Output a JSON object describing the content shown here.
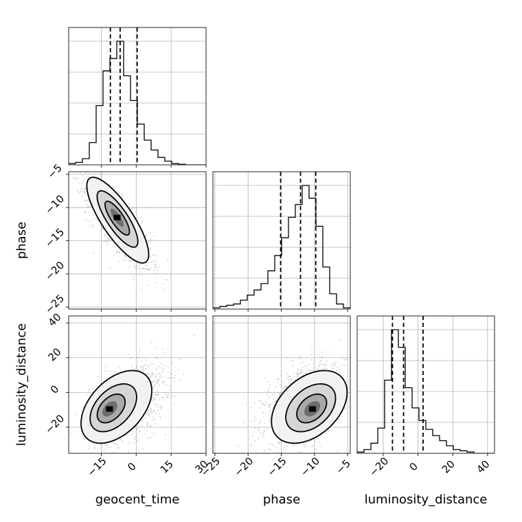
{
  "chart_data": {
    "type": "scatter",
    "title": "",
    "parameters": [
      "geocent_time",
      "phase",
      "luminosity_distance"
    ],
    "axis_labels": {
      "geocent_time": "geocent_time",
      "phase": "phase",
      "luminosity_distance": "luminosity_distance"
    },
    "ranges": {
      "geocent_time": [
        -29,
        30
      ],
      "phase": [
        -25.3,
        -4.6
      ],
      "luminosity_distance": [
        -35,
        44
      ]
    },
    "ticks": {
      "geocent_time": {
        "values": [
          -15,
          0,
          15,
          30
        ],
        "labels": [
          "−15",
          "0",
          "15",
          "30"
        ]
      },
      "phase": {
        "values": [
          -25,
          -20,
          -15,
          -10,
          -5
        ],
        "labels": [
          "−25",
          "−20",
          "−15",
          "−10",
          "−5"
        ]
      },
      "luminosity_distance": {
        "values": [
          -20,
          0,
          20,
          40
        ],
        "labels": [
          "−20",
          "0",
          "20",
          "40"
        ]
      }
    },
    "grid": true,
    "quantiles": {
      "geocent_time": [
        -11.1,
        -6.9,
        0.4
      ],
      "phase": [
        -15.1,
        -12.1,
        -9.8
      ],
      "luminosity_distance": [
        -14.7,
        -8.3,
        2.9
      ]
    },
    "marginals": {
      "geocent_time": {
        "bin_edges": [
          -29,
          -26.05,
          -23.1,
          -20.15,
          -17.2,
          -14.25,
          -11.3,
          -8.35,
          -5.4,
          -2.45,
          0.5,
          3.45,
          6.4,
          9.35,
          12.3,
          15.25,
          18.2,
          21.15,
          24.1,
          27.05,
          30
        ],
        "counts": [
          0.01,
          0.02,
          0.05,
          0.18,
          0.48,
          0.76,
          0.86,
          1.0,
          0.72,
          0.52,
          0.33,
          0.2,
          0.12,
          0.06,
          0.03,
          0.01,
          0.005,
          0,
          0,
          0
        ]
      },
      "phase": {
        "bin_edges": [
          -25.3,
          -24.265,
          -23.23,
          -22.195,
          -21.16,
          -20.125,
          -19.09,
          -18.055,
          -17.02,
          -15.985,
          -14.95,
          -13.915,
          -12.88,
          -11.845,
          -10.81,
          -9.775,
          -8.74,
          -7.705,
          -6.67,
          -5.635,
          -4.6
        ],
        "counts": [
          0.01,
          0.02,
          0.03,
          0.04,
          0.07,
          0.11,
          0.15,
          0.2,
          0.3,
          0.42,
          0.56,
          0.72,
          0.82,
          0.97,
          0.87,
          0.65,
          0.33,
          0.12,
          0.04,
          0.01
        ]
      },
      "luminosity_distance": {
        "bin_edges": [
          -35,
          -31.05,
          -27.1,
          -23.15,
          -19.2,
          -15.25,
          -11.3,
          -7.35,
          -3.4,
          0.55,
          4.5,
          8.45,
          12.4,
          16.35,
          20.3,
          24.25,
          28.2,
          32.15,
          36.1,
          40.05,
          44
        ],
        "counts": [
          0.01,
          0.03,
          0.08,
          0.2,
          0.58,
          0.98,
          0.84,
          0.52,
          0.36,
          0.26,
          0.19,
          0.14,
          0.1,
          0.06,
          0.03,
          0.02,
          0.01,
          0,
          0,
          0
        ]
      }
    },
    "joint": [
      {
        "x": "geocent_time",
        "y": "phase",
        "mean": [
          -7.5,
          -12.5
        ],
        "std": [
          7.0,
          3.4
        ],
        "correlation": -0.8,
        "mode": [
          -8.2,
          -11.5
        ]
      },
      {
        "x": "geocent_time",
        "y": "luminosity_distance",
        "mean": [
          -4.0,
          -6.5
        ],
        "std": [
          8.0,
          11.0
        ],
        "correlation": 0.45,
        "mode": [
          -11.5,
          -9.5
        ]
      },
      {
        "x": "phase",
        "y": "luminosity_distance",
        "mean": [
          -11.5,
          -6.5
        ],
        "std": [
          3.0,
          11.0
        ],
        "correlation": 0.4,
        "mode": [
          -10.3,
          -9.5
        ]
      }
    ]
  }
}
